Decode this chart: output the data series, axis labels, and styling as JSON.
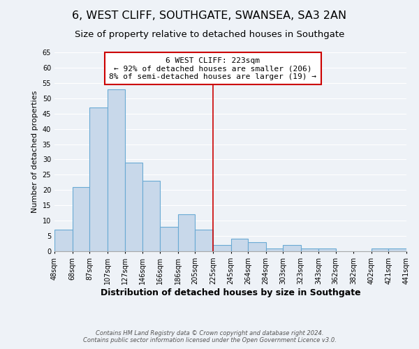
{
  "title": "6, WEST CLIFF, SOUTHGATE, SWANSEA, SA3 2AN",
  "subtitle": "Size of property relative to detached houses in Southgate",
  "xlabel": "Distribution of detached houses by size in Southgate",
  "ylabel": "Number of detached properties",
  "bin_edges": [
    48,
    68,
    87,
    107,
    127,
    146,
    166,
    186,
    205,
    225,
    245,
    264,
    284,
    303,
    323,
    343,
    362,
    382,
    402,
    421,
    441
  ],
  "bar_heights": [
    7,
    21,
    47,
    53,
    29,
    23,
    8,
    12,
    7,
    2,
    4,
    3,
    1,
    2,
    1,
    1,
    0,
    0,
    1,
    1
  ],
  "bar_color": "#c8d8ea",
  "bar_edge_color": "#6aaad4",
  "bar_linewidth": 0.8,
  "redline_x": 225,
  "redline_color": "#cc0000",
  "ylim": [
    0,
    65
  ],
  "yticks": [
    0,
    5,
    10,
    15,
    20,
    25,
    30,
    35,
    40,
    45,
    50,
    55,
    60,
    65
  ],
  "annotation_text": "6 WEST CLIFF: 223sqm\n← 92% of detached houses are smaller (206)\n8% of semi-detached houses are larger (19) →",
  "annotation_box_color": "#ffffff",
  "annotation_box_edge": "#cc0000",
  "footer1": "Contains HM Land Registry data © Crown copyright and database right 2024.",
  "footer2": "Contains public sector information licensed under the Open Government Licence v3.0.",
  "background_color": "#eef2f7",
  "grid_color": "#ffffff",
  "title_fontsize": 11.5,
  "subtitle_fontsize": 9.5,
  "xlabel_fontsize": 9,
  "ylabel_fontsize": 8,
  "tick_fontsize": 7,
  "annotation_fontsize": 8,
  "footer_fontsize": 6
}
